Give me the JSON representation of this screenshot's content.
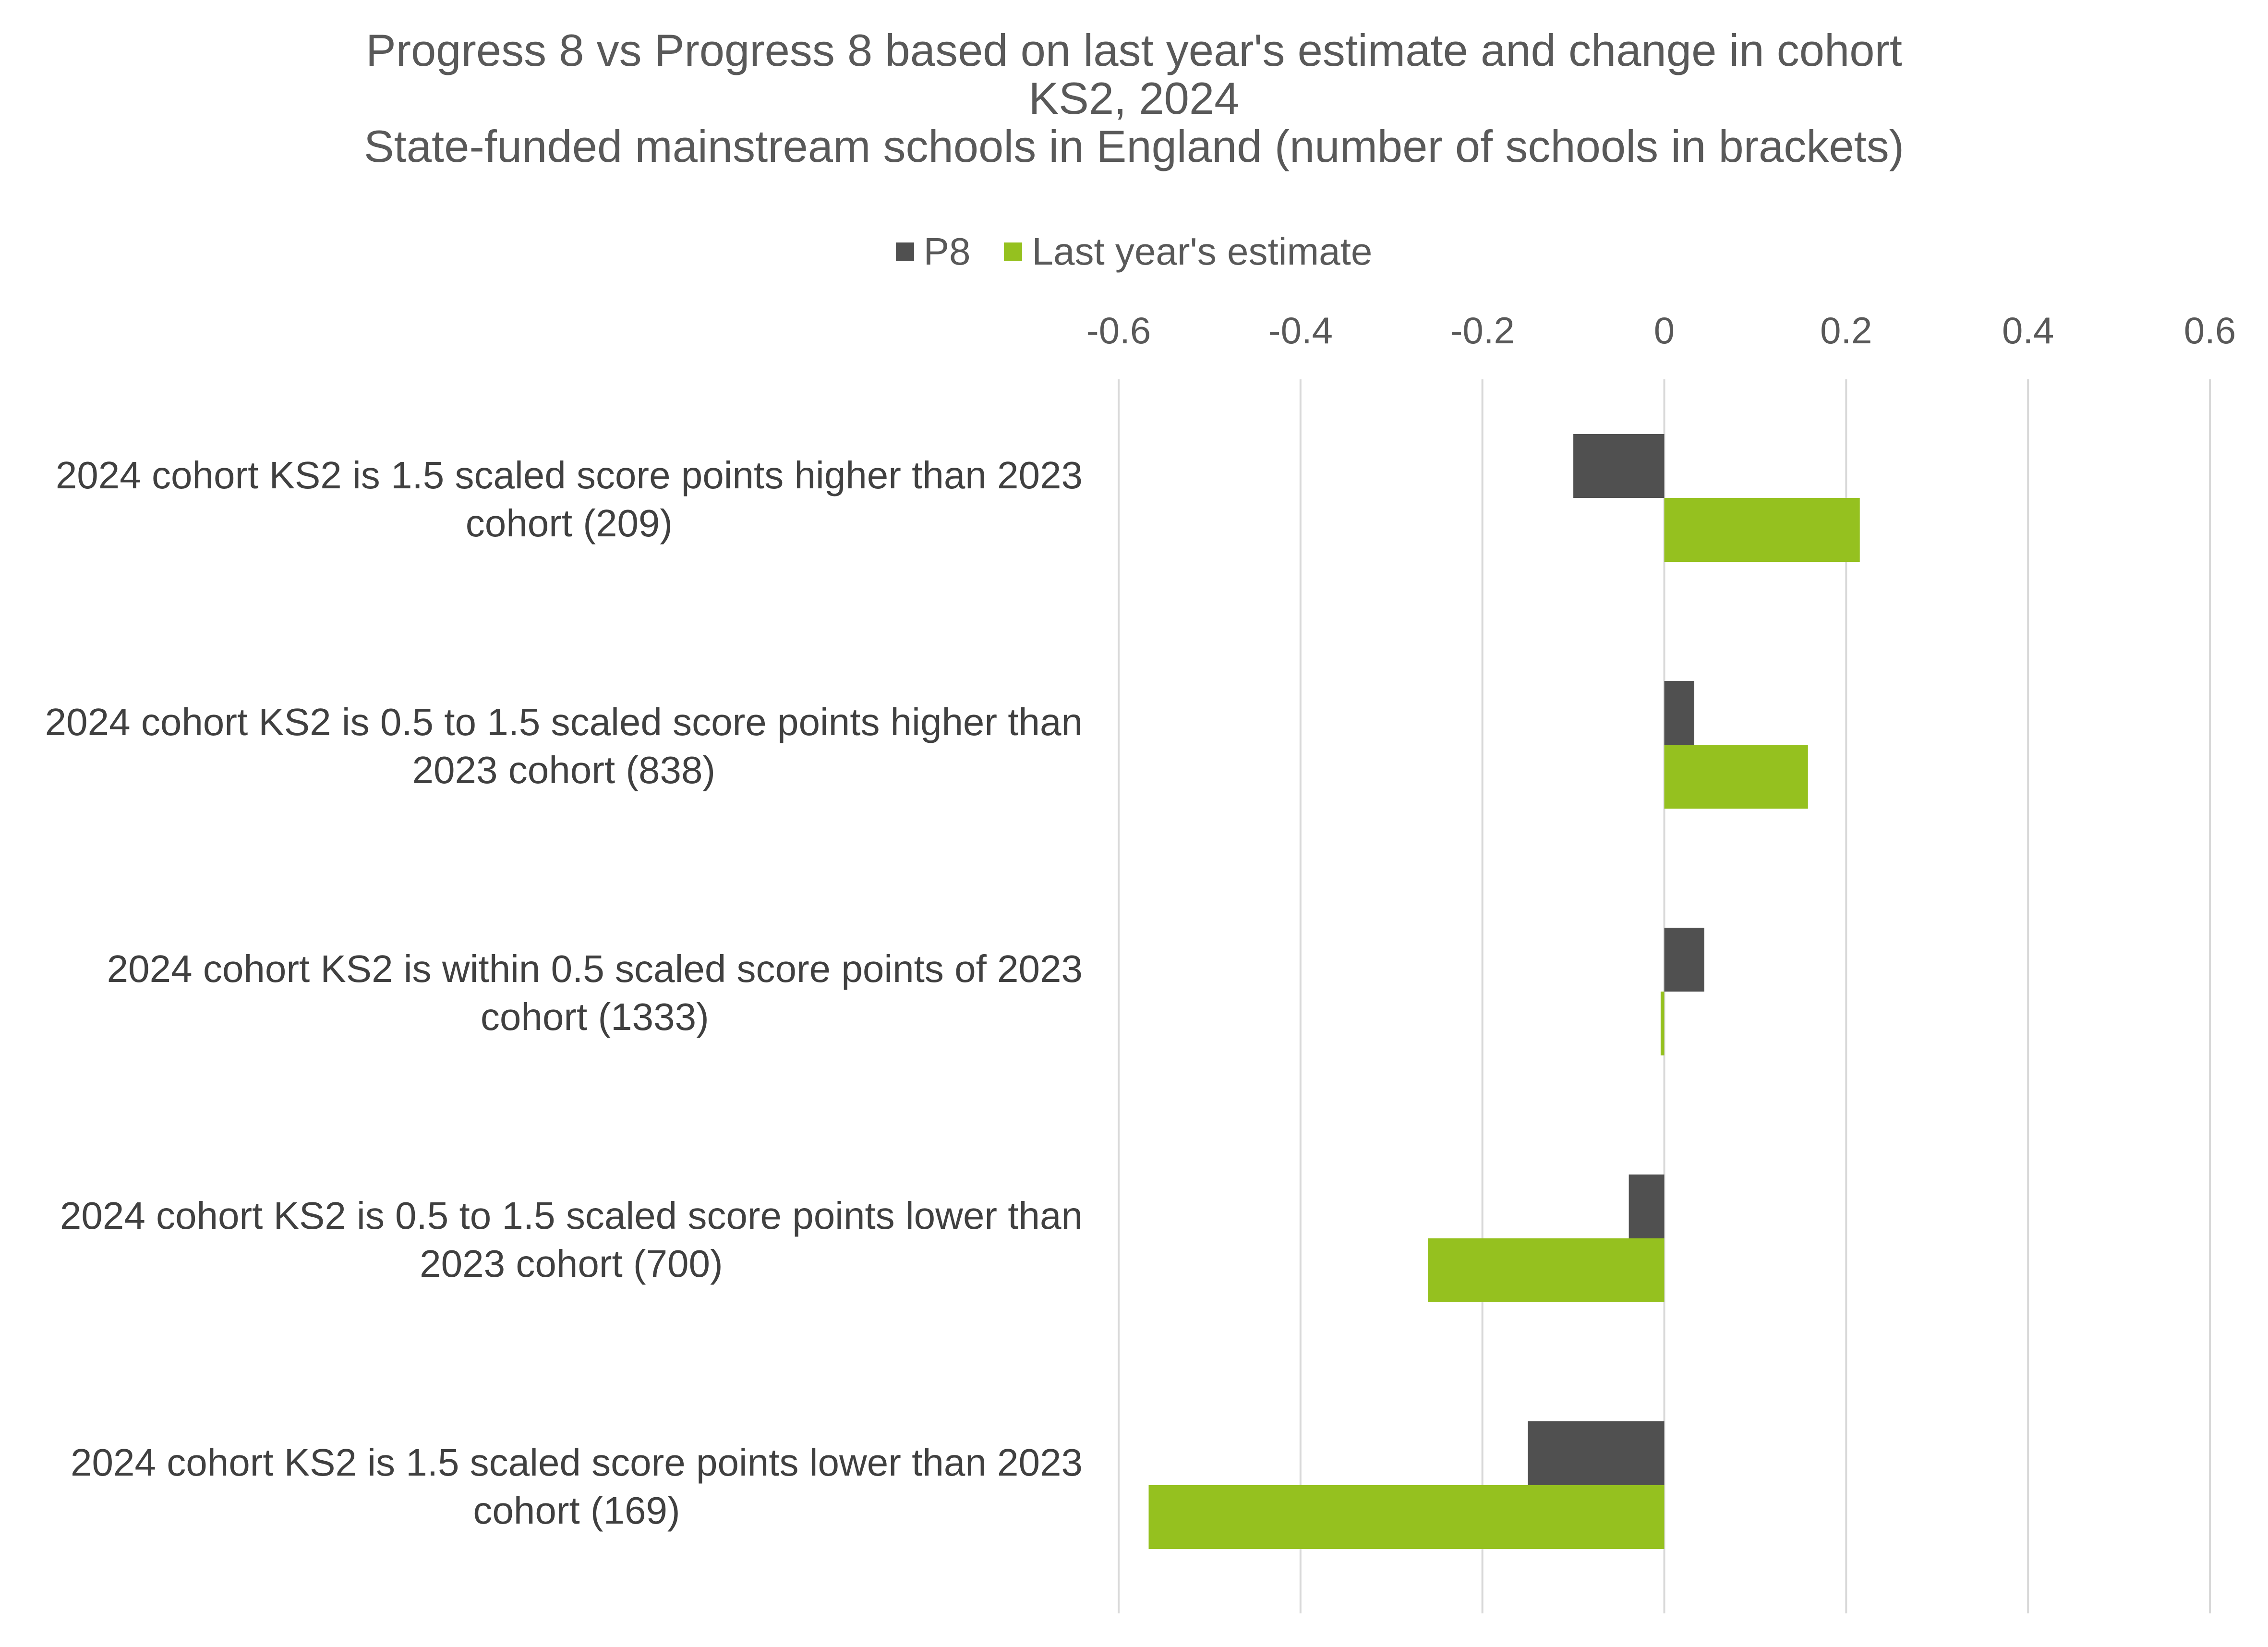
{
  "chart_data": {
    "type": "bar",
    "orientation": "horizontal",
    "title": [
      "Progress 8 vs Progress 8 based on last year's estimate and change in cohort",
      "KS2, 2024",
      "State-funded mainstream schools in England (number of schools in brackets)"
    ],
    "xlabel": "",
    "ylabel": "",
    "xlim": [
      -0.6,
      0.6
    ],
    "ticks": [
      "-0.6",
      "-0.4",
      "-0.2",
      "0",
      "0.2",
      "0.4",
      "0.6"
    ],
    "tick_values": [
      -0.6,
      -0.4,
      -0.2,
      0,
      0.2,
      0.4,
      0.6
    ],
    "axis_position": "top",
    "grid": true,
    "legend_position": "top",
    "categories": [
      [
        "2024 cohort KS2 is 1.5 scaled score points higher than 2023",
        "cohort (209)"
      ],
      [
        "2024 cohort KS2 is 0.5 to 1.5 scaled score points higher than",
        "2023 cohort (838)"
      ],
      [
        "2024 cohort KS2 is within 0.5 scaled score points of 2023",
        "cohort (1333)"
      ],
      [
        "2024 cohort KS2 is 0.5 to 1.5 scaled score points lower than",
        "2023 cohort (700)"
      ],
      [
        "2024 cohort KS2 is 1.5 scaled score points lower than 2023",
        "cohort (169)"
      ]
    ],
    "series": [
      {
        "name": "P8",
        "color": "#505050",
        "values": [
          -0.1,
          0.033,
          0.044,
          -0.039,
          -0.15
        ]
      },
      {
        "name": "Last year's estimate",
        "color": "#95C11F",
        "values": [
          0.215,
          0.158,
          -0.004,
          -0.26,
          -0.567
        ]
      }
    ]
  },
  "colors": {
    "text": "#595959",
    "category_text": "#404040",
    "gridline": "#D9D9D9"
  }
}
